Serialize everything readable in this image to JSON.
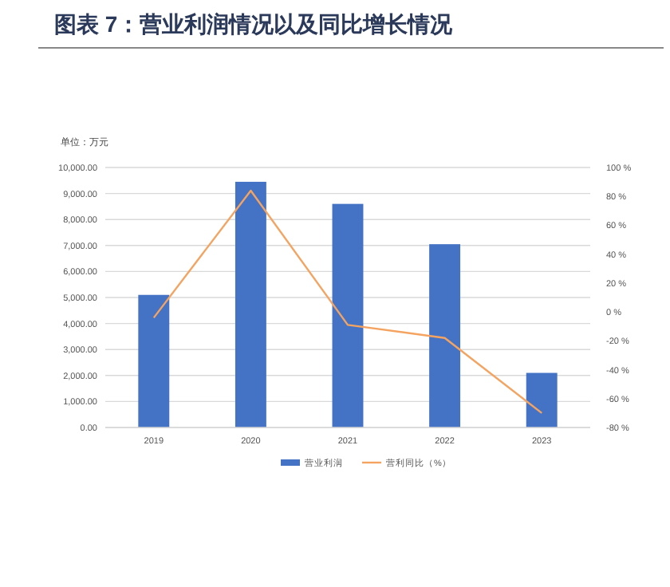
{
  "chart_data": {
    "type": "bar",
    "title": "图表 7：营业利润情况以及同比增长情况",
    "annotations": [
      "单位：万元"
    ],
    "categories": [
      "2019",
      "2020",
      "2021",
      "2022",
      "2023"
    ],
    "series": [
      {
        "name": "营业利润",
        "color": "#4472c4",
        "values": [
          5100,
          9450,
          8600,
          7050,
          2100
        ]
      },
      {
        "name": "营利同比（%）",
        "type": "line",
        "axis": "y2",
        "color": "#f4a460",
        "values": [
          -4,
          84,
          -9,
          -18,
          -70
        ]
      }
    ],
    "ylim": [
      0,
      10000
    ],
    "yticks": [
      {
        "value": 0,
        "label": "0.00"
      },
      {
        "value": 1000,
        "label": "1,000.00"
      },
      {
        "value": 2000,
        "label": "2,000.00"
      },
      {
        "value": 3000,
        "label": "3,000.00"
      },
      {
        "value": 4000,
        "label": "4,000.00"
      },
      {
        "value": 5000,
        "label": "5,000.00"
      },
      {
        "value": 6000,
        "label": "6,000.00"
      },
      {
        "value": 7000,
        "label": "7,000.00"
      },
      {
        "value": 8000,
        "label": "8,000.00"
      },
      {
        "value": 9000,
        "label": "9,000.00"
      },
      {
        "value": 10000,
        "label": "10,000.00"
      }
    ],
    "y2lim": [
      -80,
      100
    ],
    "y2ticks": [
      {
        "value": -80,
        "label": "-80 %"
      },
      {
        "value": -60,
        "label": "-60 %"
      },
      {
        "value": -40,
        "label": "-40 %"
      },
      {
        "value": -20,
        "label": "-20 %"
      },
      {
        "value": 0,
        "label": "0 %"
      },
      {
        "value": 20,
        "label": "20 %"
      },
      {
        "value": 40,
        "label": "40 %"
      },
      {
        "value": 60,
        "label": "60 %"
      },
      {
        "value": 80,
        "label": "80 %"
      },
      {
        "value": 100,
        "label": "100 %"
      }
    ],
    "grid": "y",
    "legend": "bottom"
  }
}
